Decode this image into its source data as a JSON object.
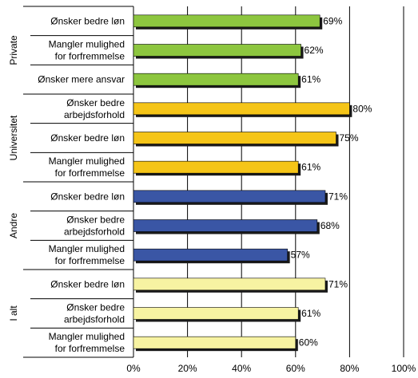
{
  "chart_data": {
    "type": "bar",
    "orientation": "horizontal",
    "title": "",
    "xlabel": "",
    "ylabel": "",
    "xlim": [
      0,
      100
    ],
    "x_ticks": [
      "0%",
      "20%",
      "40%",
      "60%",
      "80%",
      "100%"
    ],
    "grid": "vertical",
    "value_suffix": "%",
    "groups": [
      {
        "name": "Private",
        "color": "#8DC63F",
        "bars": [
          {
            "label": [
              "Ønsker bedre løn"
            ],
            "value": 69
          },
          {
            "label": [
              "Mangler mulighed",
              "for forfremmelse"
            ],
            "value": 62
          },
          {
            "label": [
              "Ønsker mere ansvar"
            ],
            "value": 61
          }
        ]
      },
      {
        "name": "Universitet",
        "color": "#F5C518",
        "bars": [
          {
            "label": [
              "Ønsker bedre",
              "arbejdsforhold"
            ],
            "value": 80
          },
          {
            "label": [
              "Ønsker bedre løn"
            ],
            "value": 75
          },
          {
            "label": [
              "Mangler mulighed",
              "for forfremmelse"
            ],
            "value": 61
          }
        ]
      },
      {
        "name": "Andre",
        "color": "#3A56A5",
        "bars": [
          {
            "label": [
              "Ønsker bedre løn"
            ],
            "value": 71
          },
          {
            "label": [
              "Ønsker bedre",
              "arbejdsforhold"
            ],
            "value": 68
          },
          {
            "label": [
              "Mangler mulighed",
              "for forfremmelse"
            ],
            "value": 57
          }
        ]
      },
      {
        "name": "I alt",
        "color": "#F7F3A2",
        "bars": [
          {
            "label": [
              "Ønsker bedre løn"
            ],
            "value": 71
          },
          {
            "label": [
              "Ønsker bedre",
              "arbejdsforhold"
            ],
            "value": 61
          },
          {
            "label": [
              "Mangler mulighed",
              "for forfremmelse"
            ],
            "value": 60
          }
        ]
      }
    ]
  }
}
